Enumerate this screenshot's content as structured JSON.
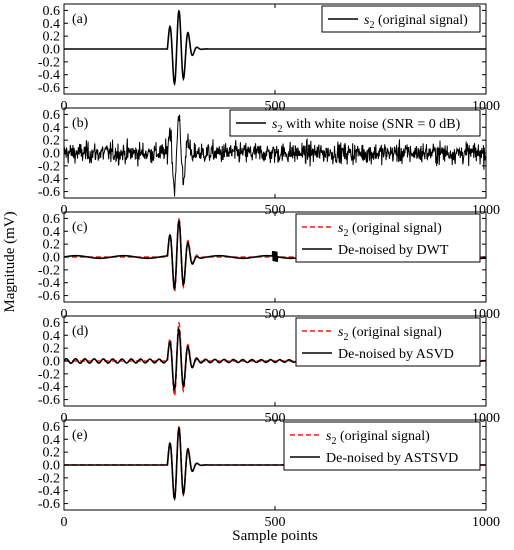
{
  "chart_data": {
    "type": "line",
    "ylabel": "Magnitude (mV)",
    "xlabel": "Sample points",
    "xlim": [
      0,
      1000
    ],
    "xticks": [
      0,
      500,
      1000
    ],
    "ylim": [
      -0.7,
      0.7
    ],
    "yticks": [
      -0.6,
      -0.4,
      -0.2,
      0.0,
      0.2,
      0.4,
      0.6
    ],
    "ytick_labels": [
      "-0.6",
      "-0.4",
      "-0.2",
      "0.0",
      "0.2",
      "0.4",
      "0.6"
    ],
    "grid": false,
    "colors": {
      "black": "#000000",
      "red": "#e8231a"
    },
    "panels": [
      {
        "label": "(a)",
        "series": [
          {
            "legend_main": "s",
            "legend_sub": "2",
            "legend_rest": " (original signal)",
            "color": "#000000",
            "style": "solid",
            "kind": "clean"
          }
        ]
      },
      {
        "label": "(b)",
        "series": [
          {
            "legend_main": "s",
            "legend_sub": "2",
            "legend_rest": " with white noise (SNR = 0 dB)",
            "color": "#000000",
            "style": "solid",
            "kind": "noisy"
          }
        ]
      },
      {
        "label": "(c)",
        "series": [
          {
            "legend_main": "s",
            "legend_sub": "2",
            "legend_rest": " (original signal)",
            "color": "#e8231a",
            "style": "dashed",
            "kind": "clean"
          },
          {
            "legend_main": "De-noised by DWT",
            "legend_sub": "",
            "legend_rest": "",
            "color": "#000000",
            "style": "solid",
            "kind": "dwt"
          }
        ]
      },
      {
        "label": "(d)",
        "series": [
          {
            "legend_main": "s",
            "legend_sub": "2",
            "legend_rest": " (original signal)",
            "color": "#e8231a",
            "style": "dashed",
            "kind": "clean"
          },
          {
            "legend_main": "De-noised by ASVD",
            "legend_sub": "",
            "legend_rest": "",
            "color": "#000000",
            "style": "solid",
            "kind": "asvd"
          }
        ]
      },
      {
        "label": "(e)",
        "series": [
          {
            "legend_main": "s",
            "legend_sub": "2",
            "legend_rest": " (original signal)",
            "color": "#e8231a",
            "style": "dashed",
            "kind": "clean"
          },
          {
            "legend_main": "De-noised by ASTSVD",
            "legend_sub": "",
            "legend_rest": "",
            "color": "#000000",
            "style": "solid",
            "kind": "astsvd"
          }
        ]
      }
    ]
  }
}
